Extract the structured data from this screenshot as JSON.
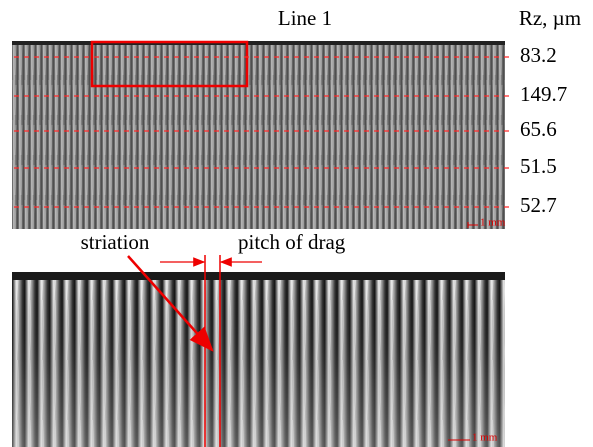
{
  "figure": {
    "title": "Line 1",
    "unit_header": "Rz, µm",
    "rz_values": [
      83.2,
      149.7,
      65.6,
      51.5,
      52.7
    ],
    "top_scale_bar": "1 mm",
    "bottom_scale_bar": "1 mm",
    "striation_label": "striation",
    "pitch_label": "pitch of drag"
  }
}
